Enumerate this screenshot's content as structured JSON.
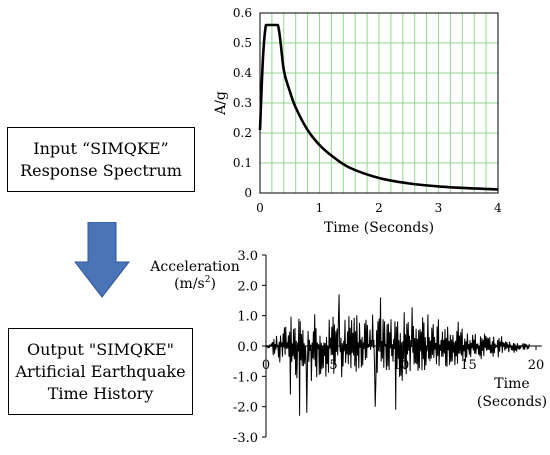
{
  "input_box": {
    "line1": "Input “SIMQKE”",
    "line2": "Response Spectrum"
  },
  "output_box": {
    "line1": "Output \"SIMQKE\"",
    "line2": "Artificial Earthquake",
    "line3": "Time History"
  },
  "arrow_color": "#4a74b8",
  "grid_color": "#8fd98f",
  "chart_data": [
    {
      "type": "line",
      "xlabel": "Time (Seconds)",
      "ylabel": "A/g",
      "xlim": [
        0,
        4
      ],
      "ylim": [
        0,
        0.6
      ],
      "xticks": [
        "0",
        "1",
        "2",
        "3",
        "4"
      ],
      "yticks": [
        "0",
        "0.1",
        "0.2",
        "0.3",
        "0.4",
        "0.5",
        "0.6"
      ],
      "grid": true,
      "x": [
        0,
        0.05,
        0.1,
        0.15,
        0.3,
        0.4,
        0.5,
        0.6,
        0.8,
        1.0,
        1.2,
        1.5,
        2.0,
        2.5,
        3.0,
        3.5,
        4.0
      ],
      "y": [
        0.21,
        0.45,
        0.56,
        0.56,
        0.56,
        0.41,
        0.34,
        0.285,
        0.21,
        0.16,
        0.125,
        0.085,
        0.05,
        0.032,
        0.022,
        0.016,
        0.012
      ]
    },
    {
      "type": "line",
      "ylabel": "Acceleration",
      "ylabel_unit": "(m/s",
      "ylabel_unit_sup": "2",
      "ylabel_unit_end": ")",
      "xlabel": "Time",
      "xlabel_line2": "(Seconds)",
      "xlim": [
        0,
        20
      ],
      "ylim": [
        -3.0,
        3.0
      ],
      "xticks": [
        "0",
        "5",
        "10",
        "15",
        "20"
      ],
      "yticks": [
        "3.0",
        "2.0",
        "1.0",
        "0.0",
        "-1.0",
        "-2.0",
        "-3.0"
      ],
      "grid": false,
      "signal": {
        "points": 400,
        "seed": 7,
        "rise_end": 2.0,
        "plateau_end": 11.0,
        "decay_end": 19.5,
        "peak_amplitude": 1.3,
        "extremes": [
          [
            3.0,
            -2.2
          ],
          [
            8.1,
            -2.0
          ],
          [
            9.6,
            -2.1
          ],
          [
            5.4,
            1.7
          ],
          [
            8.5,
            1.6
          ],
          [
            1.8,
            -1.6
          ],
          [
            2.5,
            -2.3
          ]
        ]
      }
    }
  ]
}
